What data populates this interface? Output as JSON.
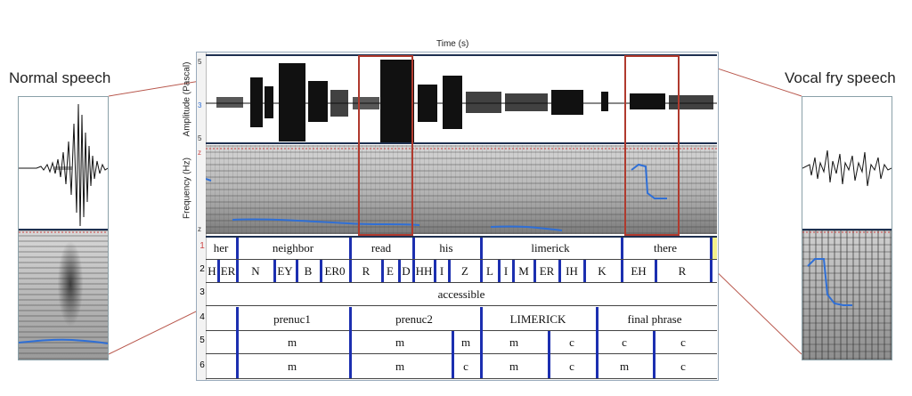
{
  "panels": {
    "left_title": "Normal speech",
    "right_title": "Vocal fry speech"
  },
  "axes": {
    "time_label": "Time (s)",
    "amplitude_label": "Amplitude (Pascal)",
    "frequency_label": "Frequency (Hz)",
    "amp_ticks": [
      "5",
      "3",
      "5"
    ],
    "freq_ticks": [
      "z",
      "z"
    ]
  },
  "tiers": {
    "numbers": [
      "1",
      "2",
      "3",
      "4",
      "5",
      "6"
    ],
    "words": [
      "her",
      "neighbor",
      "read",
      "his",
      "limerick",
      "there"
    ],
    "phones": [
      "H",
      "ER",
      "N",
      "EY",
      "B",
      "ER0",
      "R",
      "E",
      "D",
      "HH",
      "I",
      "Z",
      "L",
      "I",
      "M",
      "ER",
      "IH",
      "K",
      "EH",
      "R"
    ],
    "tier3": [
      "accessible"
    ],
    "tier4": [
      "prenuc1",
      "prenuc2",
      "LIMERICK",
      "final phrase"
    ],
    "tier5": [
      "m",
      "m",
      "m",
      "m",
      "c",
      "c",
      "c"
    ],
    "tier6": [
      "m",
      "m",
      "c",
      "m",
      "c",
      "m",
      "c"
    ]
  },
  "colors": {
    "highlight_box": "#b03a2e",
    "pitch_track": "#2f6fd6",
    "boundary": "#1c2fb0",
    "zoom_line": "#b8574c"
  }
}
